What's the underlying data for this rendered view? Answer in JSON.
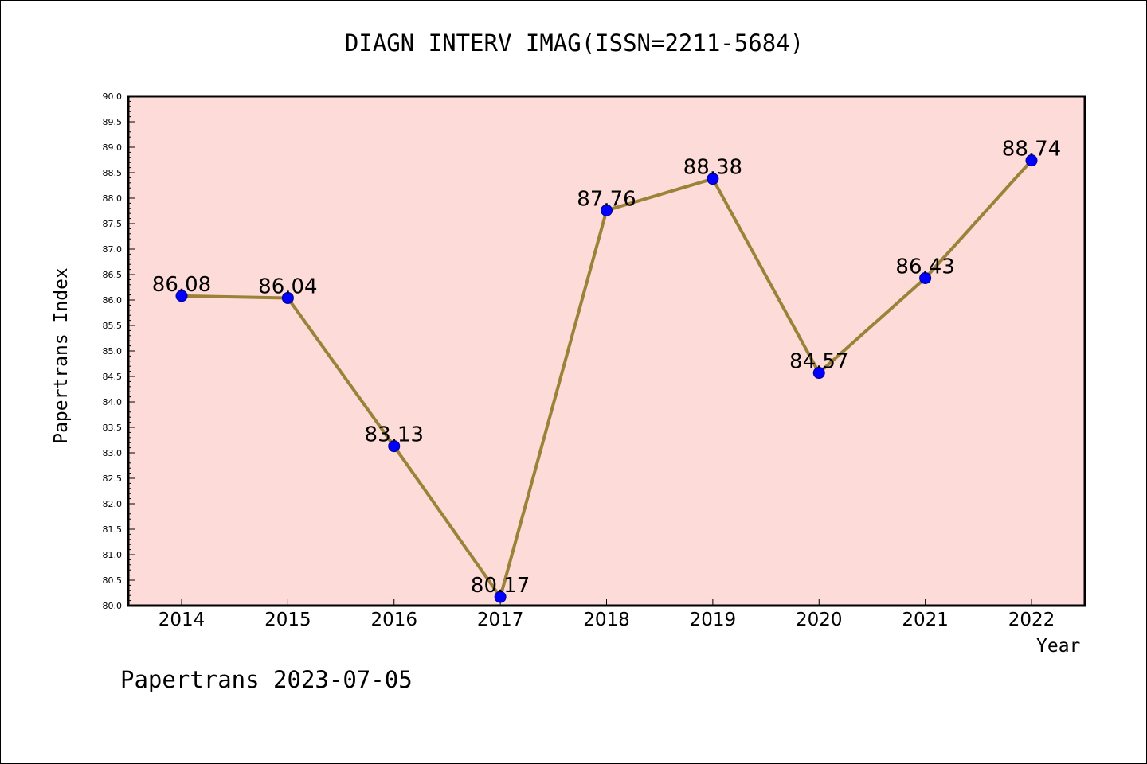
{
  "title": "DIAGN INTERV IMAG(ISSN=2211-5684)",
  "footer": "Papertrans 2023-07-05",
  "chart_data": {
    "type": "line",
    "title": "DIAGN INTERV IMAG(ISSN=2211-5684)",
    "xlabel": "Year",
    "ylabel": "Papertrans Index",
    "categories": [
      "2014",
      "2015",
      "2016",
      "2017",
      "2018",
      "2019",
      "2020",
      "2021",
      "2022"
    ],
    "values": [
      86.08,
      86.04,
      83.13,
      80.17,
      87.76,
      88.38,
      84.57,
      86.43,
      88.74
    ],
    "data_labels": [
      "86.08",
      "86.04",
      "83.13",
      "80.17",
      "87.76",
      "88.38",
      "84.57",
      "86.43",
      "88.74"
    ],
    "ylim": [
      80.0,
      90.0
    ],
    "yticks": [
      "80.0",
      "80.5",
      "81.0",
      "81.5",
      "82.0",
      "82.5",
      "83.0",
      "83.5",
      "84.0",
      "84.5",
      "85.0",
      "85.5",
      "86.0",
      "86.5",
      "87.0",
      "87.5",
      "88.0",
      "88.5",
      "89.0",
      "89.5",
      "90.0"
    ],
    "grid": false,
    "legend": "none",
    "colors": {
      "plot_background": "#fddbd8",
      "line": "#9b8238",
      "marker": "#0000ff"
    }
  }
}
